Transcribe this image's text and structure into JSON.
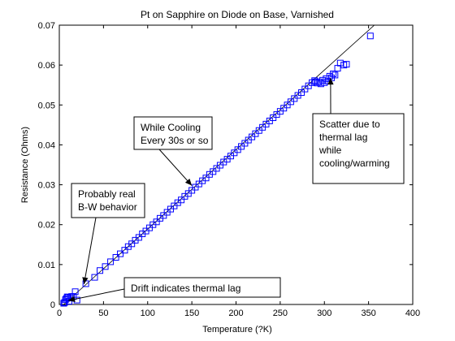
{
  "chart_data": {
    "type": "scatter",
    "title": "Pt on Sapphire on Diode on Base, Varnished",
    "xlabel": "Temperature (?K)",
    "ylabel": "Resistance (Ohms)",
    "xlim": [
      0,
      400
    ],
    "ylim": [
      0,
      0.07
    ],
    "xticks": [
      0,
      50,
      100,
      150,
      200,
      250,
      300,
      350,
      400
    ],
    "xtick_labels": [
      "0",
      "50",
      "100",
      "150",
      "200",
      "250",
      "300",
      "350",
      "400"
    ],
    "yticks": [
      0,
      0.01,
      0.02,
      0.03,
      0.04,
      0.05,
      0.06,
      0.07
    ],
    "ytick_labels": [
      "0",
      "0.01",
      "0.02",
      "0.03",
      "0.04",
      "0.05",
      "0.06",
      "0.07"
    ],
    "grid": false,
    "marker": "square",
    "marker_color": "#0000ff",
    "line_color": "#000000",
    "fit_line": {
      "x": [
        5,
        360
      ],
      "y": [
        0.0,
        0.0707
      ]
    },
    "series": [
      {
        "x": [
          5,
          6,
          7,
          8,
          9,
          10,
          11,
          12,
          14,
          16,
          18,
          20,
          30,
          40,
          46,
          52,
          58,
          64,
          69,
          74,
          78,
          82,
          86,
          90,
          94,
          98,
          102,
          106,
          110,
          114,
          118,
          122,
          126,
          130,
          134,
          138,
          142,
          146,
          150,
          154,
          158,
          162,
          166,
          170,
          174,
          178,
          182,
          186,
          190,
          194,
          198,
          202,
          206,
          210,
          214,
          218,
          222,
          226,
          230,
          234,
          238,
          242,
          246,
          250,
          254,
          258,
          262,
          266,
          270,
          274,
          278,
          282,
          286,
          289,
          290,
          292,
          294,
          296,
          298,
          300,
          302,
          304,
          306,
          308,
          310,
          312,
          315,
          318,
          322,
          325,
          352
        ],
        "y": [
          0.0003,
          0.0005,
          0.0012,
          0.0015,
          0.0019,
          0.0018,
          0.0008,
          0.0016,
          0.002,
          0.002,
          0.0032,
          0.0011,
          0.0052,
          0.0068,
          0.0085,
          0.0095,
          0.0107,
          0.0118,
          0.0127,
          0.0136,
          0.0145,
          0.0152,
          0.0161,
          0.0168,
          0.0177,
          0.0184,
          0.0192,
          0.02,
          0.0207,
          0.0216,
          0.0223,
          0.0231,
          0.0239,
          0.0247,
          0.0255,
          0.0262,
          0.0271,
          0.0278,
          0.0286,
          0.0294,
          0.0302,
          0.031,
          0.0317,
          0.0326,
          0.0333,
          0.0341,
          0.0349,
          0.0357,
          0.0364,
          0.0372,
          0.038,
          0.0388,
          0.0396,
          0.0404,
          0.0412,
          0.042,
          0.0428,
          0.0436,
          0.0444,
          0.0452,
          0.046,
          0.0468,
          0.0476,
          0.0484,
          0.0492,
          0.05,
          0.0508,
          0.0516,
          0.0524,
          0.0531,
          0.054,
          0.0548,
          0.0556,
          0.0561,
          0.0558,
          0.0555,
          0.0558,
          0.0553,
          0.0562,
          0.0556,
          0.0566,
          0.056,
          0.0572,
          0.0568,
          0.0578,
          0.0575,
          0.0592,
          0.0605,
          0.06,
          0.0602,
          0.0673
        ]
      }
    ],
    "annotations": [
      {
        "lines": [
          "While Cooling",
          "Every 30s or so"
        ],
        "arrow_to": [
          150,
          0.0298
        ]
      },
      {
        "lines": [
          "Scatter due to",
          "thermal lag",
          "while",
          "cooling/warming"
        ],
        "arrow_to": [
          307,
          0.0568
        ]
      },
      {
        "lines": [
          "Probably real",
          "B-W behavior"
        ],
        "arrow_to": [
          28,
          0.0051
        ]
      },
      {
        "lines": [
          "Drift indicates thermal lag"
        ],
        "arrow_to": [
          10,
          0.001
        ]
      }
    ]
  }
}
